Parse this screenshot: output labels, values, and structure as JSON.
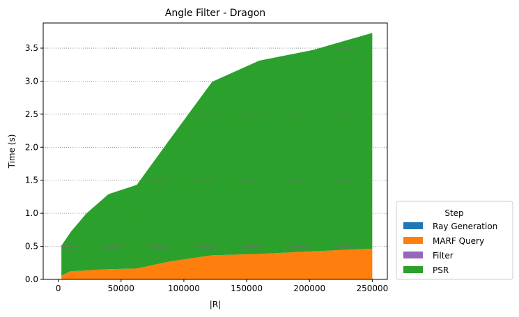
{
  "chart_data": {
    "type": "area",
    "stacked": true,
    "title": "Angle Filter - Dragon",
    "xlabel": "|R|",
    "ylabel": "Time (s)",
    "xlim": [
      -12000,
      262000
    ],
    "ylim": [
      0,
      3.88
    ],
    "x": [
      2500,
      10000,
      22500,
      40000,
      62500,
      90000,
      122500,
      160000,
      202500,
      250000
    ],
    "xticks": [
      0,
      50000,
      100000,
      150000,
      200000,
      250000
    ],
    "yticks": [
      0.0,
      0.5,
      1.0,
      1.5,
      2.0,
      2.5,
      3.0,
      3.5
    ],
    "ygrid": true,
    "legend": {
      "title": "Step",
      "placement": "outside-right-bottom"
    },
    "series": [
      {
        "name": "Ray Generation",
        "color": "#1f77b4",
        "values": [
          0.005,
          0.005,
          0.005,
          0.005,
          0.005,
          0.005,
          0.005,
          0.005,
          0.005,
          0.005
        ]
      },
      {
        "name": "MARF Query",
        "color": "#ff7f0e",
        "values": [
          0.05,
          0.12,
          0.13,
          0.15,
          0.16,
          0.27,
          0.36,
          0.38,
          0.42,
          0.46
        ]
      },
      {
        "name": "Filter",
        "color": "#9467bd",
        "values": [
          0.0,
          0.0,
          0.0,
          0.0,
          0.0,
          0.0,
          0.0,
          0.0,
          0.0,
          0.0
        ]
      },
      {
        "name": "PSR",
        "color": "#2ca02c",
        "values": [
          0.455,
          0.595,
          0.865,
          1.135,
          1.265,
          1.875,
          2.625,
          2.925,
          3.045,
          3.265
        ]
      }
    ]
  }
}
